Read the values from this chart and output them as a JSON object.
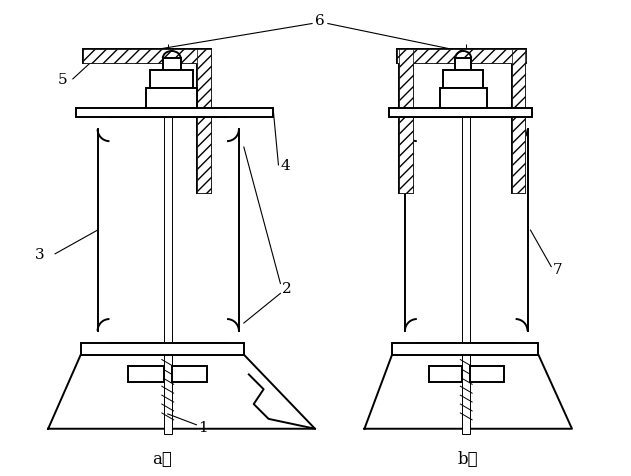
{
  "bg_color": "#ffffff",
  "line_color": "#000000",
  "fig_width": 6.31,
  "fig_height": 4.77,
  "lw": 1.4,
  "lw_thin": 0.7,
  "lw_label": 0.8,
  "font_size": 11,
  "font_size_ab": 12
}
